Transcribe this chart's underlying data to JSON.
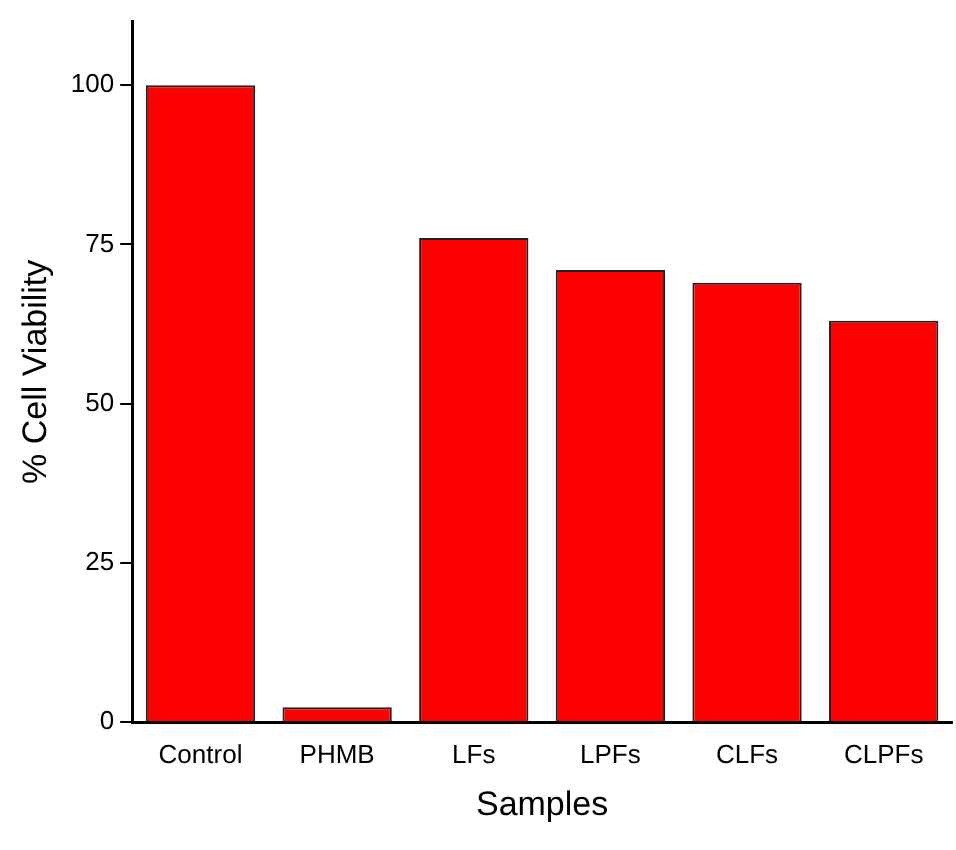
{
  "chart_data": {
    "type": "bar",
    "xlabel": "Samples",
    "ylabel": "% Cell Viability",
    "categories": [
      "Control",
      "PHMB",
      "LFs",
      "LPFs",
      "CLFs",
      "CLPFs"
    ],
    "values": [
      100,
      2.3,
      76,
      71,
      69,
      63
    ],
    "color": "#ff0000",
    "ylim": [
      0,
      110
    ],
    "yticks": [
      0,
      25,
      50,
      75,
      100
    ],
    "grid": false,
    "legend": false
  }
}
